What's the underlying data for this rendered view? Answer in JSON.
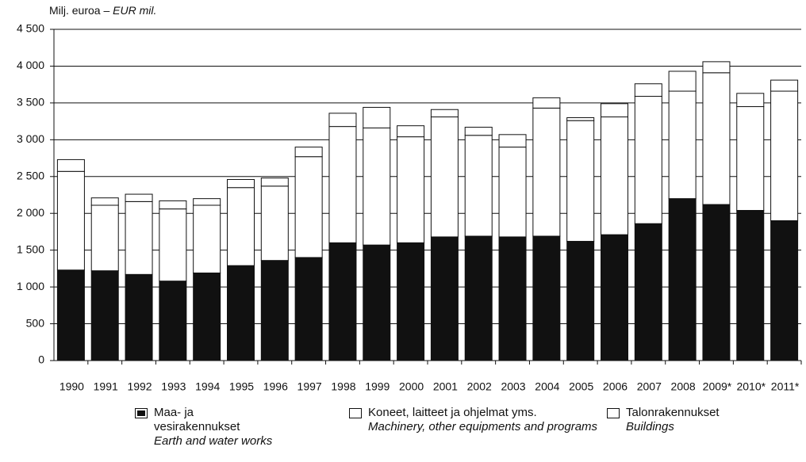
{
  "chart_data": {
    "type": "stacked-bar",
    "ylabel_fi": "Milj. euroa –",
    "ylabel_en": "EUR mil.",
    "categories": [
      "1990",
      "1991",
      "1992",
      "1993",
      "1994",
      "1995",
      "1996",
      "1997",
      "1998",
      "1999",
      "2000",
      "2001",
      "2002",
      "2003",
      "2004",
      "2005",
      "2006",
      "2007",
      "2008",
      "2009*",
      "2010*",
      "2011*"
    ],
    "series": [
      {
        "name": "Maa- ja vesirakennukset",
        "name_en": "Earth and water works",
        "color": "#111111",
        "values": [
          1230,
          1220,
          1170,
          1080,
          1190,
          1290,
          1360,
          1400,
          1600,
          1570,
          1600,
          1680,
          1690,
          1680,
          1690,
          1620,
          1710,
          1860,
          2200,
          2120,
          2040,
          1900
        ]
      },
      {
        "name": "Koneet, laitteet ja ohjelmat yms.",
        "name_en": "Machinery, other equipments and programs",
        "color": "#ffffff",
        "values": [
          1340,
          890,
          990,
          980,
          920,
          1060,
          1010,
          1370,
          1580,
          1590,
          1440,
          1630,
          1370,
          1220,
          1740,
          1640,
          1600,
          1730,
          1460,
          1790,
          1410,
          1760
        ]
      },
      {
        "name": "Talonrakennukset",
        "name_en": "Buildings",
        "color": "#ffffff",
        "values": [
          160,
          100,
          100,
          110,
          90,
          110,
          110,
          130,
          180,
          280,
          150,
          100,
          110,
          170,
          140,
          40,
          180,
          170,
          270,
          150,
          180,
          150
        ]
      }
    ],
    "ylim": [
      0,
      4500
    ],
    "yticks": [
      0,
      500,
      {
        "value": 1000,
        "label": "1 000"
      },
      {
        "value": 1500,
        "label": "1 500"
      },
      {
        "value": 2000,
        "label": "2 000"
      },
      {
        "value": 2500,
        "label": "2 500"
      },
      {
        "value": 3000,
        "label": "3 000"
      },
      {
        "value": 3500,
        "label": "3 500"
      },
      {
        "value": 4000,
        "label": "4 000"
      },
      {
        "value": 4500,
        "label": "4 500"
      }
    ],
    "grid": true
  }
}
